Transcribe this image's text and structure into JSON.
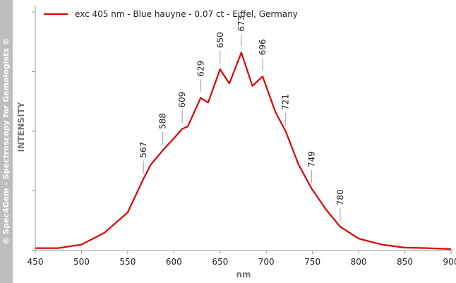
{
  "chart_data": {
    "type": "line",
    "watermark": "© Spec4Gem - Spectroscopy for Gemologists ©",
    "xlabel": "nm",
    "ylabel": "INTENSITY",
    "x": [
      450,
      475,
      500,
      525,
      550,
      567,
      575,
      588,
      600,
      609,
      615,
      629,
      637,
      650,
      660,
      673,
      685,
      696,
      710,
      721,
      735,
      749,
      765,
      780,
      800,
      825,
      850,
      875,
      900
    ],
    "series": [
      {
        "name": "exc 405 nm - Blue hauyne - 0.07 ct - Eiffel, Germany",
        "color": "#dd0000",
        "values": [
          0.01,
          0.01,
          0.025,
          0.075,
          0.16,
          0.3,
          0.36,
          0.42,
          0.47,
          0.51,
          0.52,
          0.64,
          0.62,
          0.76,
          0.7,
          0.83,
          0.69,
          0.73,
          0.58,
          0.5,
          0.36,
          0.26,
          0.17,
          0.1,
          0.05,
          0.025,
          0.012,
          0.01,
          0.006
        ]
      }
    ],
    "annotations": [
      567,
      588,
      609,
      629,
      650,
      673,
      696,
      721,
      749,
      780
    ],
    "xlim": [
      450,
      900
    ],
    "xticks": [
      450,
      500,
      550,
      600,
      650,
      700,
      750,
      800,
      850,
      900
    ],
    "ylim": [
      0,
      1
    ],
    "yticks": [
      0,
      0.25,
      0.5,
      0.75,
      1
    ],
    "legend": "top-left"
  }
}
